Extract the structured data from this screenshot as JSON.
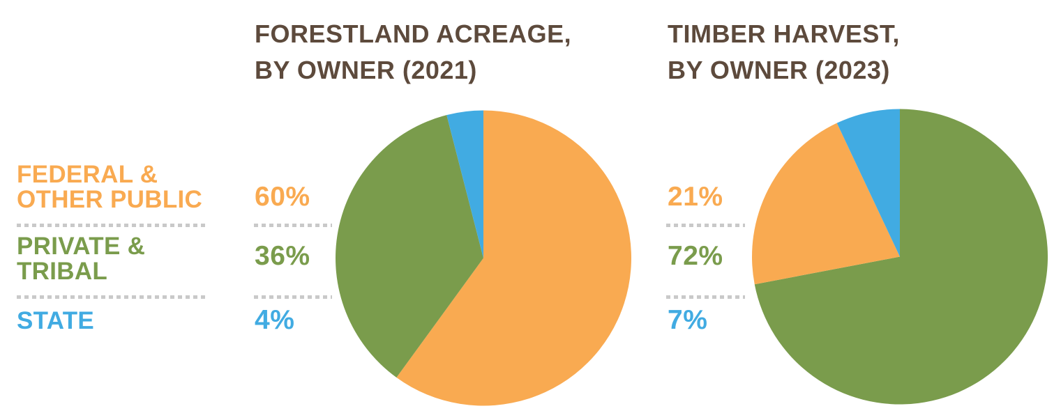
{
  "colors": {
    "orange": "#F9AA51",
    "green": "#7A9C4C",
    "blue": "#41ABE2",
    "title_brown": "#5D4A3C",
    "dash_gray": "#C9C9C9",
    "background": "#FFFFFF"
  },
  "legend": {
    "items": [
      {
        "id": "federal-other-public",
        "lines": [
          "FEDERAL &",
          "OTHER PUBLIC"
        ],
        "color": "#F9AA51"
      },
      {
        "id": "private-tribal",
        "lines": [
          "PRIVATE &",
          "TRIBAL"
        ],
        "color": "#7A9C4C"
      },
      {
        "id": "state",
        "lines": [
          "STATE"
        ],
        "color": "#41ABE2"
      }
    ]
  },
  "chart_data": [
    {
      "type": "pie",
      "title": "FORESTLAND ACREAGE, BY OWNER (2021)",
      "title_lines": [
        "FORESTLAND ACREAGE,",
        "BY OWNER (2021)"
      ],
      "categories": [
        "Federal & Other Public",
        "Private & Tribal",
        "State"
      ],
      "values": [
        60,
        36,
        4
      ],
      "value_labels": [
        "60%",
        "36%",
        "4%"
      ],
      "colors": [
        "#F9AA51",
        "#7A9C4C",
        "#41ABE2"
      ],
      "start_angle_deg": 0,
      "direction": "clockwise",
      "draw_order": [
        0,
        1,
        2
      ],
      "legend_position": "left"
    },
    {
      "type": "pie",
      "title": "TIMBER HARVEST, BY OWNER (2023)",
      "title_lines": [
        "TIMBER HARVEST,",
        "BY OWNER (2023)"
      ],
      "categories": [
        "Federal & Other Public",
        "Private & Tribal",
        "State"
      ],
      "values": [
        21,
        72,
        7
      ],
      "value_labels": [
        "21%",
        "72%",
        "7%"
      ],
      "colors": [
        "#F9AA51",
        "#7A9C4C",
        "#41ABE2"
      ],
      "start_angle_deg": 0,
      "direction": "clockwise",
      "draw_order": [
        1,
        0,
        2
      ],
      "legend_position": "left"
    }
  ]
}
